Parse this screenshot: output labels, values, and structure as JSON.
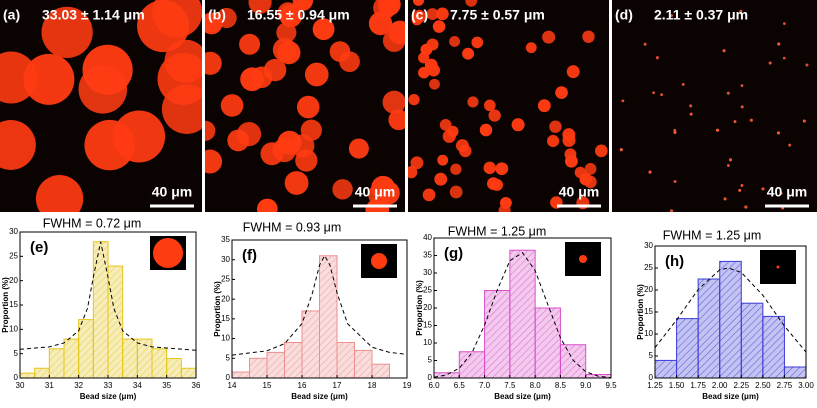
{
  "panels": [
    {
      "label": "(a)",
      "size": "33.03 ± 1.14 μm",
      "scale_bar": "40 μm"
    },
    {
      "label": "(b)",
      "size": "16.55 ± 0.94 μm",
      "scale_bar": "40 μm"
    },
    {
      "label": "(c)",
      "size": "7.75 ± 0.57 μm",
      "scale_bar": "40 μm"
    },
    {
      "label": "(d)",
      "size": "2.11 ± 0.37 μm",
      "scale_bar": "40 μm"
    }
  ],
  "chart_data": [
    {
      "type": "histogram",
      "label": "(e)",
      "title": "FWHM = 0.72 μm",
      "xlabel": "Bead size (μm)",
      "ylabel": "Proportion (%)",
      "color": "#e6c619",
      "bins": [
        30,
        30.5,
        31,
        31.5,
        32,
        32.5,
        33,
        33.5,
        34,
        34.5,
        35,
        35.5,
        36
      ],
      "values": [
        1,
        2,
        6,
        8,
        12,
        28,
        23,
        8,
        8,
        6,
        4,
        2
      ],
      "fit": {
        "x": [
          30,
          31,
          31.5,
          32,
          32.3,
          32.5,
          32.75,
          33,
          33.2,
          33.5,
          34,
          34.5,
          36
        ],
        "values": [
          5.9,
          6.4,
          7.2,
          9.7,
          14.3,
          20.7,
          28,
          20.7,
          14.3,
          9.7,
          7.2,
          6.4,
          5.7
        ]
      },
      "xlim": [
        30,
        36
      ],
      "xticks": [
        30,
        31,
        32,
        33,
        34,
        35,
        36
      ],
      "ylim": [
        0,
        30
      ],
      "yticks": [
        0,
        5,
        10,
        15,
        20,
        25,
        30
      ]
    },
    {
      "type": "histogram",
      "label": "(f)",
      "title": "FWHM = 0.93 μm",
      "xlabel": "Bead size (μm)",
      "ylabel": "Proportion (%)",
      "color": "#ec8f8f",
      "bins": [
        14,
        14.5,
        15,
        15.5,
        16,
        16.5,
        17,
        17.5,
        18,
        18.5,
        19
      ],
      "values": [
        1.5,
        5,
        6.5,
        9,
        17,
        31,
        9,
        7,
        3.5,
        0
      ],
      "fit": {
        "x": [
          14,
          15,
          15.5,
          16,
          16.3,
          16.5,
          16.65,
          16.8,
          17,
          17.3,
          18,
          18.5,
          19
        ],
        "values": [
          5.8,
          6.9,
          8.7,
          13.8,
          21.6,
          28.6,
          31,
          28.6,
          21.6,
          13.8,
          7.8,
          6.5,
          6
        ]
      },
      "xlim": [
        14,
        19
      ],
      "xticks": [
        14,
        15,
        16,
        17,
        18,
        19
      ],
      "ylim": [
        0,
        35
      ],
      "yticks": [
        0,
        5,
        10,
        15,
        20,
        25,
        30,
        35
      ]
    },
    {
      "type": "histogram",
      "label": "(g)",
      "title": "FWHM = 1.25 μm",
      "xlabel": "Bead size (μm)",
      "ylabel": "Proportion (%)",
      "color": "#d84fc8",
      "bins": [
        6,
        6.5,
        7,
        7.5,
        8,
        8.5,
        9,
        9.5
      ],
      "values": [
        1.5,
        7.5,
        25,
        36.5,
        20,
        9.5,
        1
      ],
      "fit": {
        "x": [
          6,
          6.25,
          6.5,
          6.75,
          7,
          7.25,
          7.5,
          7.75,
          8,
          8.25,
          8.5,
          8.75,
          9,
          9.25,
          9.5
        ],
        "values": [
          0.2,
          0.9,
          2.8,
          7.2,
          15.1,
          25.1,
          33.5,
          35.8,
          30.7,
          21,
          11.5,
          5.1,
          1.8,
          0.5,
          0.1
        ]
      },
      "xlim": [
        6,
        9.5
      ],
      "xticks": [
        {
          "value": 6,
          "label": "6.0"
        },
        6.5,
        {
          "value": 7,
          "label": "7.0"
        },
        7.5,
        {
          "value": 8,
          "label": "8.0"
        },
        8.5,
        {
          "value": 9,
          "label": "9.0"
        },
        9.5
      ],
      "ylim": [
        0,
        40
      ],
      "yticks": [
        0,
        5,
        10,
        15,
        20,
        25,
        30,
        35,
        40
      ]
    },
    {
      "type": "histogram",
      "label": "(h)",
      "title": "FWHM = 1.25 μm",
      "xlabel": "Bead size (μm)",
      "ylabel": "Proportion (%)",
      "color": "#3b3bd6",
      "bins": [
        1.25,
        1.5,
        1.75,
        2,
        2.25,
        2.5,
        2.75,
        3
      ],
      "values": [
        4,
        13.5,
        22.5,
        26.5,
        17,
        14,
        2.5
      ],
      "fit": {
        "x": [
          1.25,
          1.5,
          1.75,
          2,
          2.1,
          2.25,
          2.5,
          2.75,
          3
        ],
        "values": [
          6.9,
          13.2,
          20.1,
          24.6,
          25,
          24,
          18.8,
          11.8,
          5.9
        ]
      },
      "xlim": [
        1.25,
        3
      ],
      "xticks": [
        1.25,
        {
          "value": 1.5,
          "label": "1.50"
        },
        1.75,
        {
          "value": 2,
          "label": "2.00"
        },
        2.25,
        {
          "value": 2.5,
          "label": "2.50"
        },
        2.75,
        {
          "value": 3,
          "label": "3.00"
        }
      ],
      "ylim": [
        0,
        30
      ],
      "yticks": [
        0,
        5,
        10,
        15,
        20,
        25,
        30
      ]
    }
  ]
}
